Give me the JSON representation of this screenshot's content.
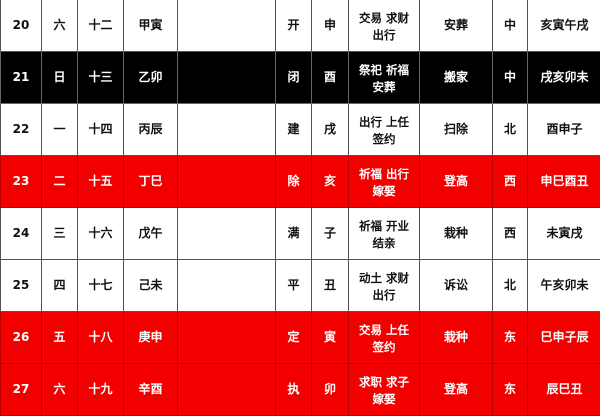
{
  "colors": {
    "red_row": "#f20000",
    "black_row": "#000000",
    "white_row": "#ffffff"
  },
  "rows": [
    {
      "style": "white",
      "day": "20",
      "weekday": "六",
      "lunar": "十二",
      "ganzhi": "甲寅",
      "note": "",
      "jianchu": "开",
      "zhi": "申",
      "yi": [
        "交易 求财",
        "出行"
      ],
      "ji": "安葬",
      "direction": "中",
      "hours": "亥寅午戌"
    },
    {
      "style": "black",
      "day": "21",
      "weekday": "日",
      "lunar": "十三",
      "ganzhi": "乙卯",
      "note": "",
      "jianchu": "闭",
      "zhi": "酉",
      "yi": [
        "祭祀 祈福",
        "安葬"
      ],
      "ji": "搬家",
      "direction": "中",
      "hours": "戌亥卯未"
    },
    {
      "style": "white",
      "day": "22",
      "weekday": "一",
      "lunar": "十四",
      "ganzhi": "丙辰",
      "note": "",
      "jianchu": "建",
      "zhi": "戌",
      "yi": [
        "出行 上任",
        "签约"
      ],
      "ji": "扫除",
      "direction": "北",
      "hours": "酉申子"
    },
    {
      "style": "red",
      "day": "23",
      "weekday": "二",
      "lunar": "十五",
      "ganzhi": "丁巳",
      "note": "",
      "jianchu": "除",
      "zhi": "亥",
      "yi": [
        "祈福 出行",
        "嫁娶"
      ],
      "ji": "登高",
      "direction": "西",
      "hours": "申巳酉丑"
    },
    {
      "style": "white",
      "day": "24",
      "weekday": "三",
      "lunar": "十六",
      "ganzhi": "戊午",
      "note": "",
      "jianchu": "满",
      "zhi": "子",
      "yi": [
        "祈福 开业",
        "结亲"
      ],
      "ji": "栽种",
      "direction": "西",
      "hours": "未寅戌"
    },
    {
      "style": "white",
      "day": "25",
      "weekday": "四",
      "lunar": "十七",
      "ganzhi": "己未",
      "note": "",
      "jianchu": "平",
      "zhi": "丑",
      "yi": [
        "动土 求财",
        "出行"
      ],
      "ji": "诉讼",
      "direction": "北",
      "hours": "午亥卯未"
    },
    {
      "style": "red",
      "day": "26",
      "weekday": "五",
      "lunar": "十八",
      "ganzhi": "庚申",
      "note": "",
      "jianchu": "定",
      "zhi": "寅",
      "yi": [
        "交易 上任",
        "签约"
      ],
      "ji": "栽种",
      "direction": "东",
      "hours": "巳申子辰"
    },
    {
      "style": "red",
      "day": "27",
      "weekday": "六",
      "lunar": "十九",
      "ganzhi": "辛酉",
      "note": "",
      "jianchu": "执",
      "zhi": "卯",
      "yi": [
        "求职 求子",
        "嫁娶"
      ],
      "ji": "登高",
      "direction": "东",
      "hours": "辰巳丑"
    }
  ]
}
